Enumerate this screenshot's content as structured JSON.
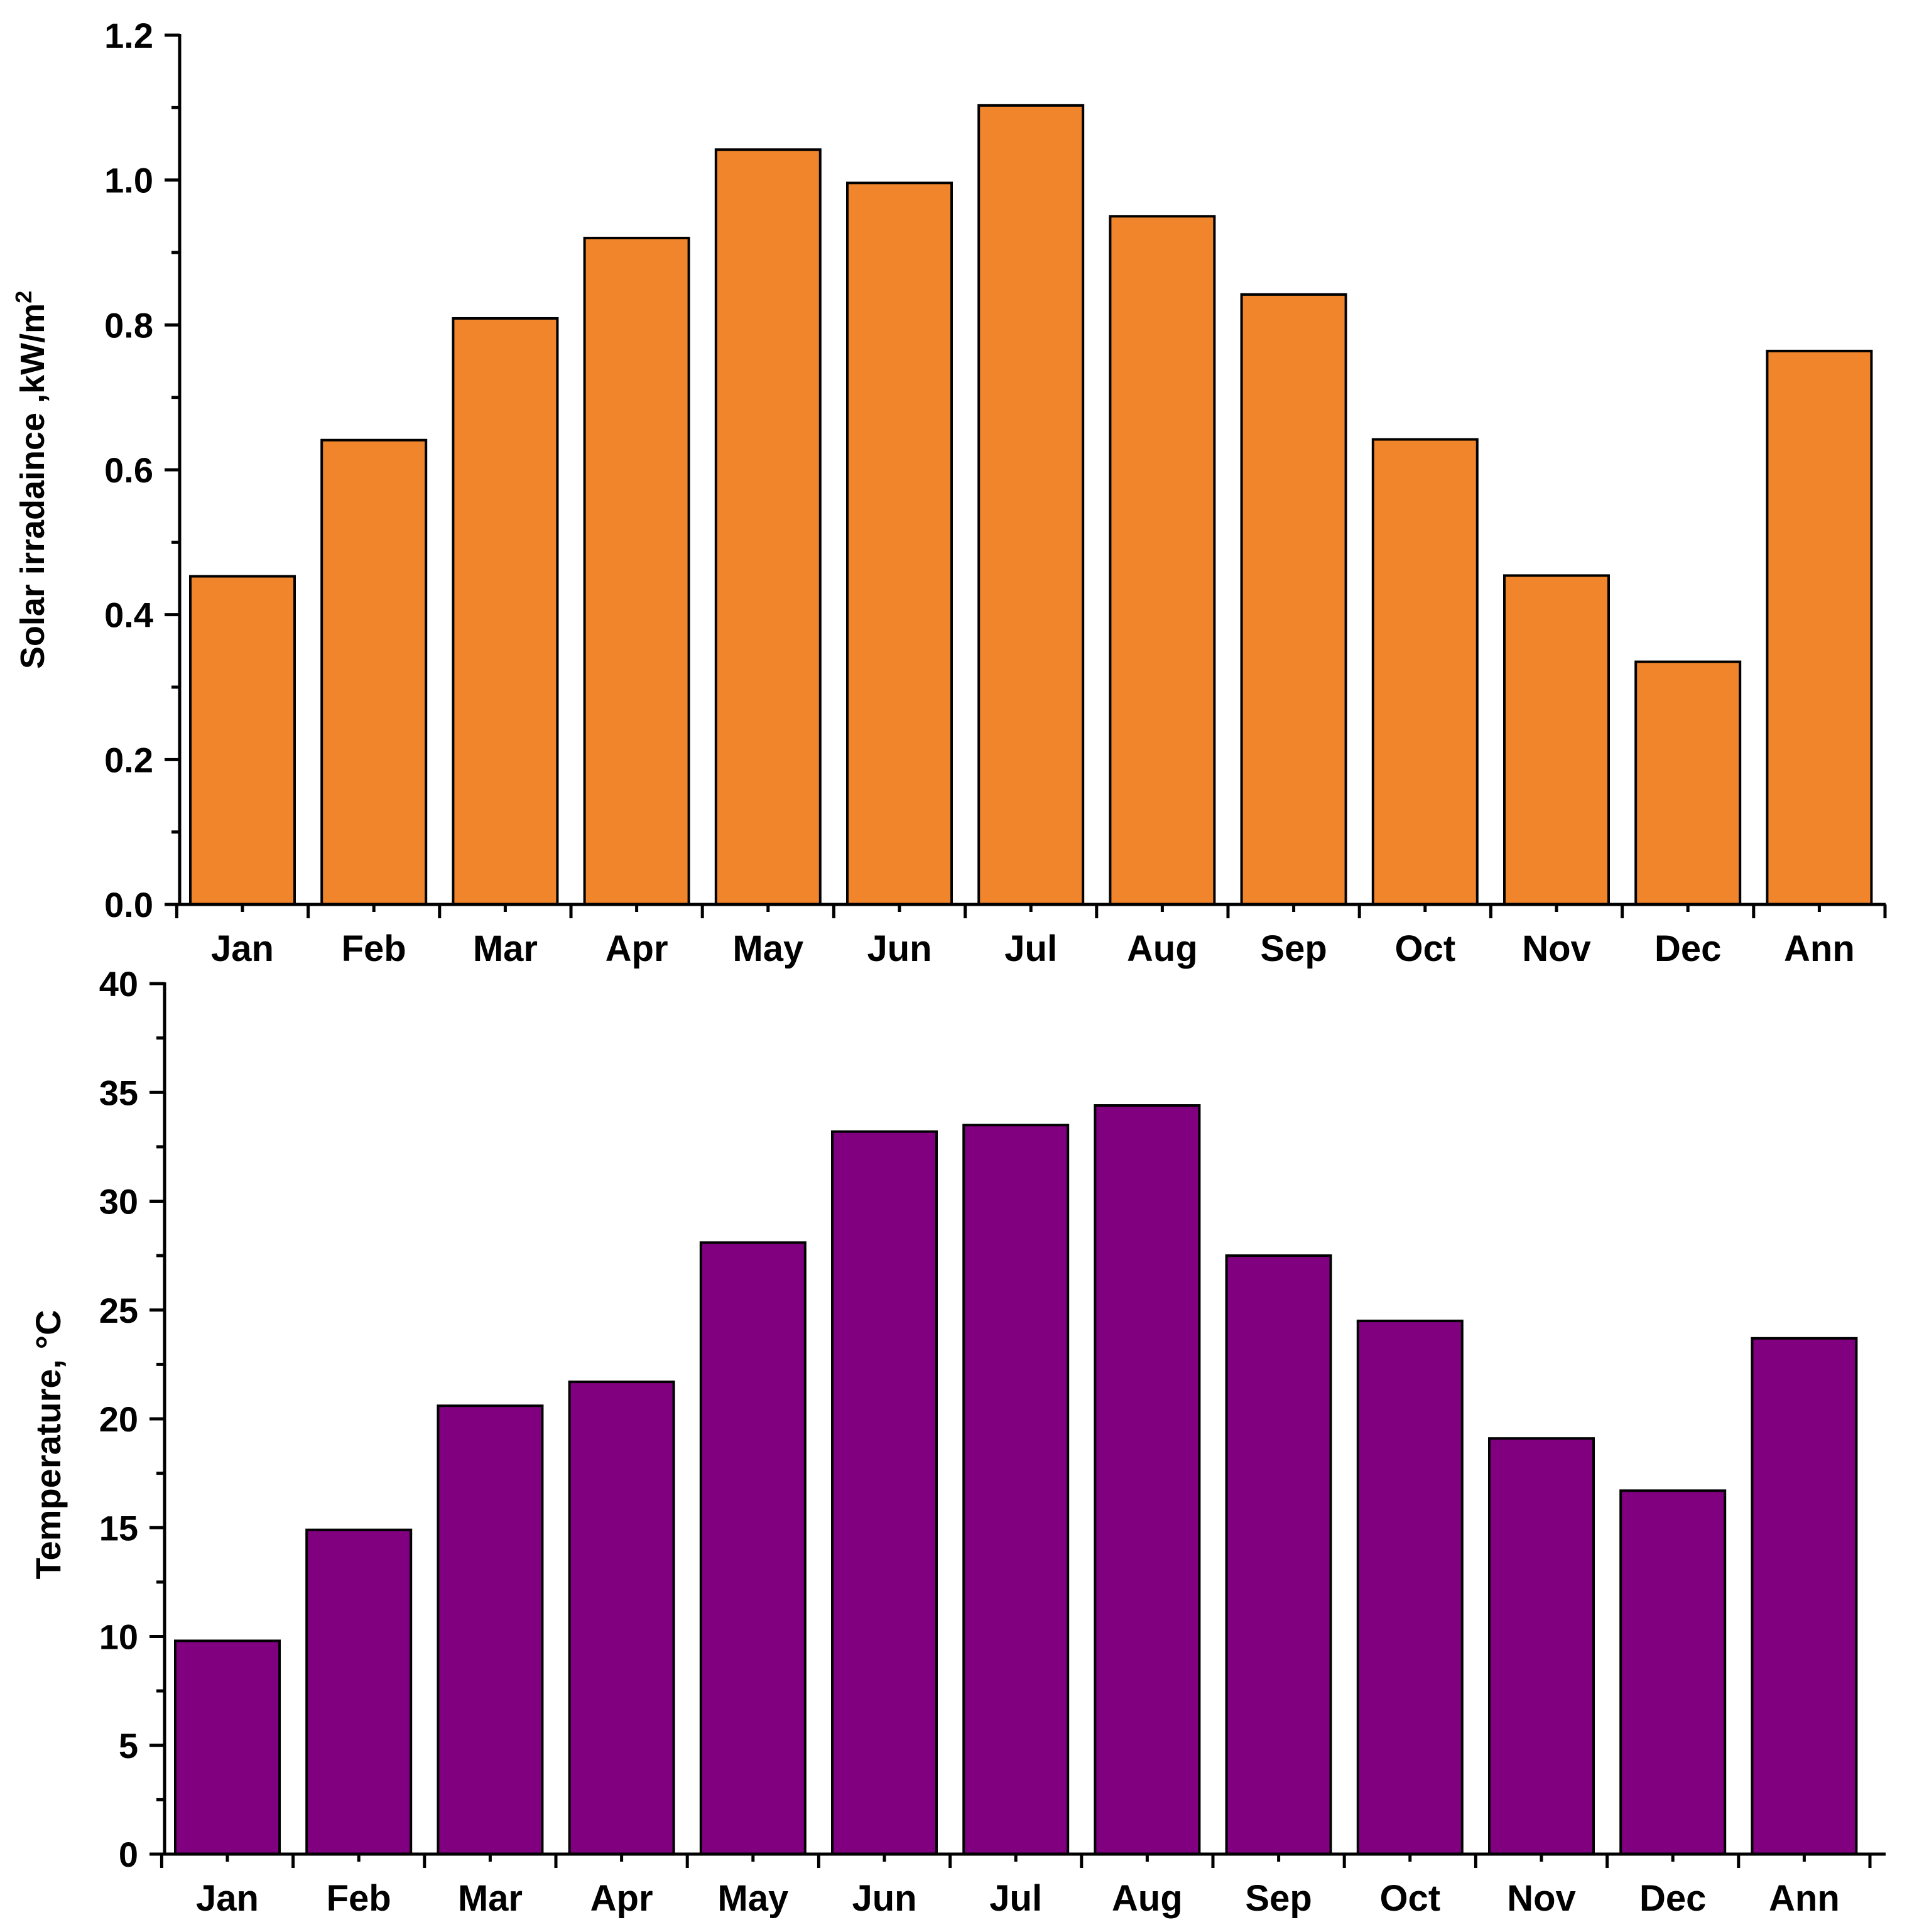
{
  "chart_data": [
    {
      "type": "bar",
      "ylabel": "Solar irradaince ,kW/m",
      "ylabel_superscript": "2",
      "xlabel": "",
      "categories": [
        "Jan",
        "Feb",
        "Mar",
        "Apr",
        "May",
        "Jun",
        "Jul",
        "Aug",
        "Sep",
        "Oct",
        "Nov",
        "Dec",
        "Ann"
      ],
      "values": [
        0.453,
        0.641,
        0.809,
        0.92,
        1.042,
        0.996,
        1.103,
        0.95,
        0.842,
        0.642,
        0.454,
        0.335,
        0.764
      ],
      "ylim": [
        0,
        1.2
      ],
      "yticks": [
        0.0,
        0.2,
        0.4,
        0.6,
        0.8,
        1.0,
        1.2
      ],
      "ytick_labels": [
        "0.0",
        "0.2",
        "0.4",
        "0.6",
        "0.8",
        "1.0",
        "1.2"
      ],
      "minor_ytick_step": 0.1,
      "bar_color": "#F0852B",
      "edge_color": "#000000",
      "grid": false
    },
    {
      "type": "bar",
      "ylabel": "Temperature, °C",
      "xlabel": "",
      "categories": [
        "Jan",
        "Feb",
        "Mar",
        "Apr",
        "May",
        "Jun",
        "Jul",
        "Aug",
        "Sep",
        "Oct",
        "Nov",
        "Dec",
        "Ann"
      ],
      "values": [
        9.8,
        14.9,
        20.6,
        21.7,
        28.1,
        33.2,
        33.5,
        34.4,
        27.5,
        24.5,
        19.1,
        16.7,
        23.7
      ],
      "ylim": [
        0,
        40
      ],
      "yticks": [
        0,
        5,
        10,
        15,
        20,
        25,
        30,
        35,
        40
      ],
      "ytick_labels": [
        "0",
        "5",
        "10",
        "15",
        "20",
        "25",
        "30",
        "35",
        "40"
      ],
      "minor_ytick_step": 2.5,
      "bar_color": "#800080",
      "edge_color": "#000000",
      "grid": false
    }
  ]
}
